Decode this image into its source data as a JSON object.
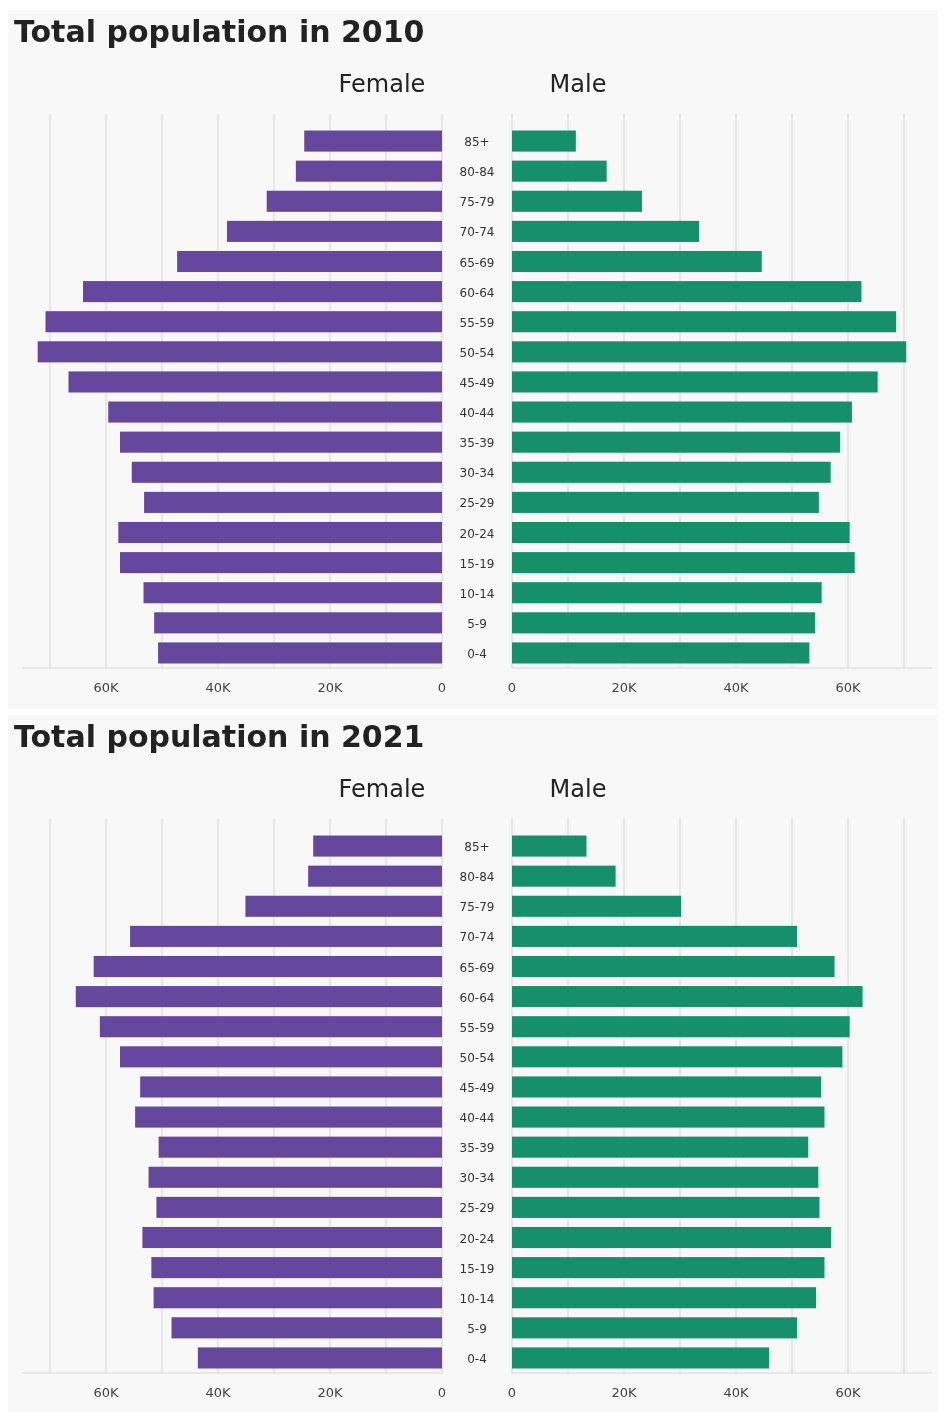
{
  "chart_data": [
    {
      "type": "bar",
      "orientation": "horizontal",
      "title": "Total population in 2010",
      "subtitle": "Female",
      "categories": [
        "85+",
        "80-84",
        "75-79",
        "70-74",
        "65-69",
        "60-64",
        "55-59",
        "50-54",
        "45-49",
        "40-44",
        "35-39",
        "30-34",
        "25-29",
        "20-24",
        "15-19",
        "10-14",
        "5-9",
        "0-4"
      ],
      "series": [
        {
          "color": "#65479e",
          "values": [
            24600,
            26100,
            31300,
            38400,
            47300,
            64100,
            70800,
            72200,
            66700,
            59600,
            57500,
            55400,
            53200,
            57800,
            57500,
            53300,
            51400,
            50700
          ]
        }
      ],
      "xlim": [
        75000,
        0
      ],
      "xticks": [
        {
          "value": 70000,
          "label": null
        },
        {
          "value": 60000,
          "label": "60K"
        },
        {
          "value": 50000,
          "label": null
        },
        {
          "value": 40000,
          "label": "40K"
        },
        {
          "value": 30000,
          "label": null
        },
        {
          "value": 20000,
          "label": "20K"
        },
        {
          "value": 10000,
          "label": null
        },
        {
          "value": 0,
          "label": "0"
        }
      ],
      "grid": "x"
    },
    {
      "type": "bar",
      "orientation": "horizontal",
      "subtitle": "Male",
      "categories": [
        null,
        null,
        null,
        null,
        null,
        null,
        null,
        null,
        null,
        null,
        null,
        null,
        null,
        null,
        null,
        null,
        null,
        null
      ],
      "series": [
        {
          "color": "#168f6b",
          "values": [
            11400,
            16900,
            23200,
            33400,
            44600,
            62400,
            68600,
            70400,
            65300,
            60700,
            58600,
            56900,
            54800,
            60300,
            61200,
            55300,
            54100,
            53100
          ]
        }
      ],
      "xlim": [
        0,
        75000
      ],
      "xticks": [
        {
          "value": 0,
          "label": "0"
        },
        {
          "value": 10000,
          "label": null
        },
        {
          "value": 20000,
          "label": "20K"
        },
        {
          "value": 30000,
          "label": null
        },
        {
          "value": 40000,
          "label": "40K"
        },
        {
          "value": 50000,
          "label": null
        },
        {
          "value": 60000,
          "label": "60K"
        },
        {
          "value": 70000,
          "label": null
        }
      ],
      "grid": "x",
      "tick_labels": "x"
    },
    {
      "type": "bar",
      "orientation": "horizontal",
      "title": "Total population in 2021",
      "subtitle": "Female",
      "categories": [
        "85+",
        "80-84",
        "75-79",
        "70-74",
        "65-69",
        "60-64",
        "55-59",
        "50-54",
        "45-49",
        "40-44",
        "35-39",
        "30-34",
        "25-29",
        "20-24",
        "15-19",
        "10-14",
        "5-9",
        "0-4"
      ],
      "series": [
        {
          "color": "#65479e",
          "values": [
            23000,
            23900,
            35100,
            55700,
            62200,
            65400,
            61100,
            57500,
            53900,
            54800,
            50600,
            52400,
            51000,
            53500,
            51900,
            51500,
            48300,
            43600
          ]
        }
      ],
      "xlim": [
        75000,
        0
      ],
      "xticks": [
        {
          "value": 70000,
          "label": null
        },
        {
          "value": 60000,
          "label": "60K"
        },
        {
          "value": 50000,
          "label": null
        },
        {
          "value": 40000,
          "label": "40K"
        },
        {
          "value": 30000,
          "label": null
        },
        {
          "value": 20000,
          "label": "20K"
        },
        {
          "value": 10000,
          "label": null
        },
        {
          "value": 0,
          "label": "0"
        }
      ],
      "grid": "x"
    },
    {
      "type": "bar",
      "orientation": "horizontal",
      "subtitle": "Male",
      "categories": [
        null,
        null,
        null,
        null,
        null,
        null,
        null,
        null,
        null,
        null,
        null,
        null,
        null,
        null,
        null,
        null,
        null,
        null
      ],
      "series": [
        {
          "color": "#168f6b",
          "values": [
            13300,
            18500,
            30200,
            50900,
            57600,
            62600,
            60300,
            59000,
            55200,
            55800,
            52900,
            54700,
            54900,
            57000,
            55800,
            54300,
            50900,
            45900
          ]
        }
      ],
      "xlim": [
        0,
        75000
      ],
      "xticks": [
        {
          "value": 0,
          "label": "0"
        },
        {
          "value": 10000,
          "label": null
        },
        {
          "value": 20000,
          "label": "20K"
        },
        {
          "value": 30000,
          "label": null
        },
        {
          "value": 40000,
          "label": "40K"
        },
        {
          "value": 50000,
          "label": null
        },
        {
          "value": 60000,
          "label": "60K"
        },
        {
          "value": 70000,
          "label": null
        }
      ],
      "grid": "x",
      "tick_labels": "x"
    }
  ]
}
